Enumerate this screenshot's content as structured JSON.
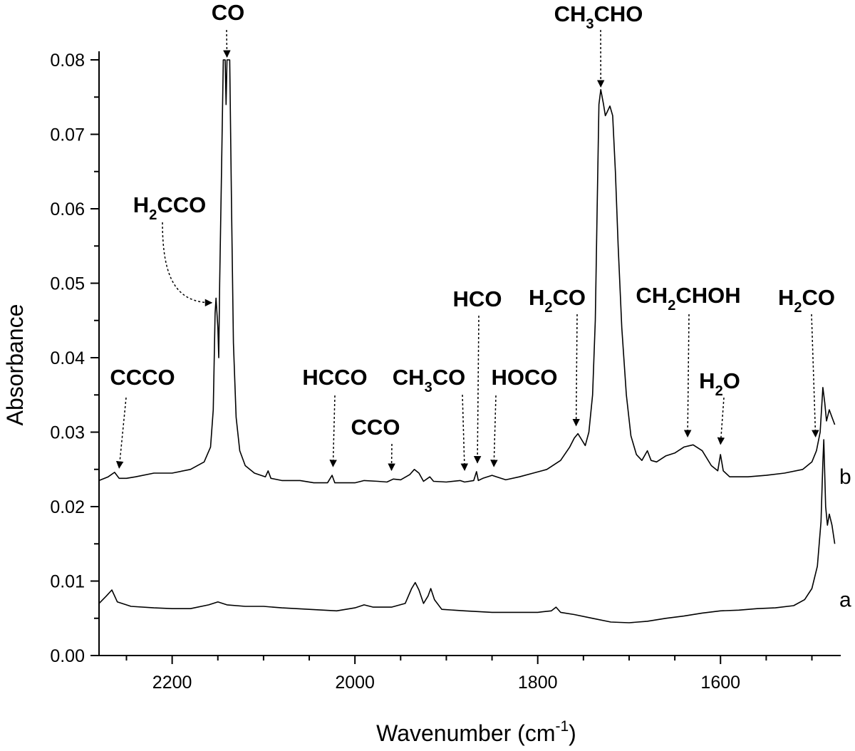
{
  "chart_data": {
    "type": "line",
    "xlabel": "Wavenumber (cm",
    "xlabel_superscript": "-1",
    "xlabel_suffix": ")",
    "ylabel": "Absorbance",
    "xlim": [
      2280,
      1470
    ],
    "ylim": [
      0.0,
      0.08
    ],
    "x_reversed": true,
    "grid": false,
    "x_ticks": [
      {
        "value": 2200,
        "label": "2200"
      },
      {
        "value": 2000,
        "label": "2000"
      },
      {
        "value": 1800,
        "label": "1800"
      },
      {
        "value": 1600,
        "label": "1600"
      }
    ],
    "y_ticks": [
      {
        "value": 0.0,
        "label": "0.00"
      },
      {
        "value": 0.01,
        "label": "0.01"
      },
      {
        "value": 0.02,
        "label": "0.02"
      },
      {
        "value": 0.03,
        "label": "0.03"
      },
      {
        "value": 0.04,
        "label": "0.04"
      },
      {
        "value": 0.05,
        "label": "0.05"
      },
      {
        "value": 0.06,
        "label": "0.06"
      },
      {
        "value": 0.07,
        "label": "0.07"
      },
      {
        "value": 0.08,
        "label": "0.08"
      }
    ],
    "series": [
      {
        "name": "b",
        "color": "#000000",
        "points": [
          [
            2280,
            0.0235
          ],
          [
            2270,
            0.024
          ],
          [
            2263,
            0.0246
          ],
          [
            2258,
            0.0238
          ],
          [
            2250,
            0.0238
          ],
          [
            2240,
            0.024
          ],
          [
            2220,
            0.0245
          ],
          [
            2200,
            0.0245
          ],
          [
            2180,
            0.025
          ],
          [
            2165,
            0.026
          ],
          [
            2158,
            0.028
          ],
          [
            2155,
            0.033
          ],
          [
            2153,
            0.046
          ],
          [
            2152,
            0.048
          ],
          [
            2150,
            0.044
          ],
          [
            2149,
            0.04
          ],
          [
            2148,
            0.05
          ],
          [
            2146,
            0.065
          ],
          [
            2144,
            0.08
          ],
          [
            2142,
            0.08
          ],
          [
            2141,
            0.074
          ],
          [
            2140,
            0.08
          ],
          [
            2137,
            0.08
          ],
          [
            2135,
            0.06
          ],
          [
            2133,
            0.042
          ],
          [
            2130,
            0.032
          ],
          [
            2126,
            0.0275
          ],
          [
            2120,
            0.0255
          ],
          [
            2110,
            0.0245
          ],
          [
            2098,
            0.024
          ],
          [
            2095,
            0.0248
          ],
          [
            2092,
            0.0238
          ],
          [
            2080,
            0.0235
          ],
          [
            2060,
            0.0235
          ],
          [
            2045,
            0.0232
          ],
          [
            2030,
            0.0232
          ],
          [
            2025,
            0.0242
          ],
          [
            2022,
            0.0232
          ],
          [
            2000,
            0.0232
          ],
          [
            1990,
            0.0235
          ],
          [
            1975,
            0.0234
          ],
          [
            1965,
            0.0233
          ],
          [
            1958,
            0.0237
          ],
          [
            1950,
            0.0236
          ],
          [
            1940,
            0.0243
          ],
          [
            1935,
            0.025
          ],
          [
            1930,
            0.0245
          ],
          [
            1925,
            0.0234
          ],
          [
            1918,
            0.024
          ],
          [
            1914,
            0.0234
          ],
          [
            1900,
            0.0233
          ],
          [
            1885,
            0.0235
          ],
          [
            1880,
            0.0233
          ],
          [
            1870,
            0.0235
          ],
          [
            1867,
            0.0247
          ],
          [
            1865,
            0.0235
          ],
          [
            1860,
            0.0238
          ],
          [
            1850,
            0.0242
          ],
          [
            1845,
            0.024
          ],
          [
            1835,
            0.0236
          ],
          [
            1820,
            0.024
          ],
          [
            1805,
            0.0245
          ],
          [
            1790,
            0.025
          ],
          [
            1775,
            0.0262
          ],
          [
            1765,
            0.028
          ],
          [
            1760,
            0.0292
          ],
          [
            1756,
            0.0298
          ],
          [
            1752,
            0.029
          ],
          [
            1748,
            0.0282
          ],
          [
            1744,
            0.03
          ],
          [
            1740,
            0.035
          ],
          [
            1737,
            0.045
          ],
          [
            1735,
            0.06
          ],
          [
            1733,
            0.074
          ],
          [
            1731,
            0.076
          ],
          [
            1728,
            0.074
          ],
          [
            1726,
            0.0725
          ],
          [
            1724,
            0.073
          ],
          [
            1721,
            0.0738
          ],
          [
            1718,
            0.0725
          ],
          [
            1715,
            0.065
          ],
          [
            1712,
            0.055
          ],
          [
            1708,
            0.044
          ],
          [
            1703,
            0.035
          ],
          [
            1698,
            0.0295
          ],
          [
            1692,
            0.027
          ],
          [
            1686,
            0.0262
          ],
          [
            1680,
            0.0275
          ],
          [
            1676,
            0.0262
          ],
          [
            1670,
            0.026
          ],
          [
            1660,
            0.0268
          ],
          [
            1650,
            0.0272
          ],
          [
            1640,
            0.028
          ],
          [
            1630,
            0.0283
          ],
          [
            1620,
            0.0275
          ],
          [
            1610,
            0.0255
          ],
          [
            1603,
            0.0248
          ],
          [
            1600,
            0.027
          ],
          [
            1597,
            0.0248
          ],
          [
            1590,
            0.024
          ],
          [
            1570,
            0.024
          ],
          [
            1550,
            0.0242
          ],
          [
            1530,
            0.0245
          ],
          [
            1510,
            0.025
          ],
          [
            1500,
            0.026
          ],
          [
            1495,
            0.0275
          ],
          [
            1491,
            0.03
          ],
          [
            1488,
            0.036
          ],
          [
            1486,
            0.034
          ],
          [
            1484,
            0.0315
          ],
          [
            1481,
            0.033
          ],
          [
            1478,
            0.032
          ],
          [
            1475,
            0.031
          ]
        ]
      },
      {
        "name": "a",
        "color": "#000000",
        "points": [
          [
            2280,
            0.007
          ],
          [
            2272,
            0.008
          ],
          [
            2266,
            0.0088
          ],
          [
            2260,
            0.0072
          ],
          [
            2245,
            0.0066
          ],
          [
            2220,
            0.0064
          ],
          [
            2200,
            0.0063
          ],
          [
            2180,
            0.0063
          ],
          [
            2160,
            0.0068
          ],
          [
            2150,
            0.0072
          ],
          [
            2140,
            0.0068
          ],
          [
            2120,
            0.0066
          ],
          [
            2100,
            0.0066
          ],
          [
            2080,
            0.0064
          ],
          [
            2050,
            0.0062
          ],
          [
            2020,
            0.006
          ],
          [
            2000,
            0.0064
          ],
          [
            1990,
            0.0068
          ],
          [
            1980,
            0.0065
          ],
          [
            1960,
            0.0065
          ],
          [
            1945,
            0.007
          ],
          [
            1938,
            0.009
          ],
          [
            1934,
            0.0098
          ],
          [
            1930,
            0.0088
          ],
          [
            1925,
            0.007
          ],
          [
            1920,
            0.008
          ],
          [
            1917,
            0.009
          ],
          [
            1913,
            0.0075
          ],
          [
            1905,
            0.0062
          ],
          [
            1880,
            0.006
          ],
          [
            1850,
            0.0058
          ],
          [
            1820,
            0.0058
          ],
          [
            1800,
            0.0058
          ],
          [
            1785,
            0.006
          ],
          [
            1780,
            0.0065
          ],
          [
            1775,
            0.0058
          ],
          [
            1760,
            0.0055
          ],
          [
            1740,
            0.005
          ],
          [
            1720,
            0.0045
          ],
          [
            1700,
            0.0044
          ],
          [
            1680,
            0.0046
          ],
          [
            1660,
            0.005
          ],
          [
            1640,
            0.0053
          ],
          [
            1620,
            0.0057
          ],
          [
            1600,
            0.006
          ],
          [
            1580,
            0.0061
          ],
          [
            1560,
            0.0063
          ],
          [
            1540,
            0.0064
          ],
          [
            1520,
            0.0067
          ],
          [
            1508,
            0.0075
          ],
          [
            1500,
            0.009
          ],
          [
            1494,
            0.012
          ],
          [
            1490,
            0.018
          ],
          [
            1488,
            0.026
          ],
          [
            1487,
            0.029
          ],
          [
            1485,
            0.02
          ],
          [
            1483,
            0.0175
          ],
          [
            1481,
            0.019
          ],
          [
            1478,
            0.0175
          ],
          [
            1475,
            0.015
          ]
        ]
      }
    ],
    "curve_labels": [
      {
        "text": "b",
        "series": "b"
      },
      {
        "text": "a",
        "series": "a"
      }
    ],
    "annotations": [
      {
        "base": "CO",
        "sub": "",
        "rest": "",
        "x": 2140,
        "y": 0.08
      },
      {
        "base": "CH",
        "sub": "3",
        "rest": "CHO",
        "x": 1731,
        "y": 0.076
      },
      {
        "base": "H",
        "sub": "2",
        "rest": "CCO",
        "x": 2152,
        "y": 0.047
      },
      {
        "base": "CCCO",
        "sub": "",
        "rest": "",
        "x": 2258,
        "y": 0.0248
      },
      {
        "base": "HCCO",
        "sub": "",
        "rest": "",
        "x": 2024,
        "y": 0.025
      },
      {
        "base": "CCO",
        "sub": "",
        "rest": "",
        "x": 1960,
        "y": 0.0245
      },
      {
        "base": "CH",
        "sub": "3",
        "rest": "CO",
        "x": 1880,
        "y": 0.0245
      },
      {
        "base": "HCO",
        "sub": "",
        "rest": "",
        "x": 1866,
        "y": 0.0255
      },
      {
        "base": "HOCO",
        "sub": "",
        "rest": "",
        "x": 1848,
        "y": 0.025
      },
      {
        "base": "H",
        "sub": "2",
        "rest": "CO",
        "x": 1758,
        "y": 0.0305
      },
      {
        "base": "CH",
        "sub": "2",
        "rest": "CHOH",
        "x": 1636,
        "y": 0.029
      },
      {
        "base": "H",
        "sub": "2",
        "rest": "O",
        "x": 1600,
        "y": 0.028
      },
      {
        "base": "H",
        "sub": "2",
        "rest": "CO",
        "x": 1496,
        "y": 0.029
      }
    ]
  }
}
